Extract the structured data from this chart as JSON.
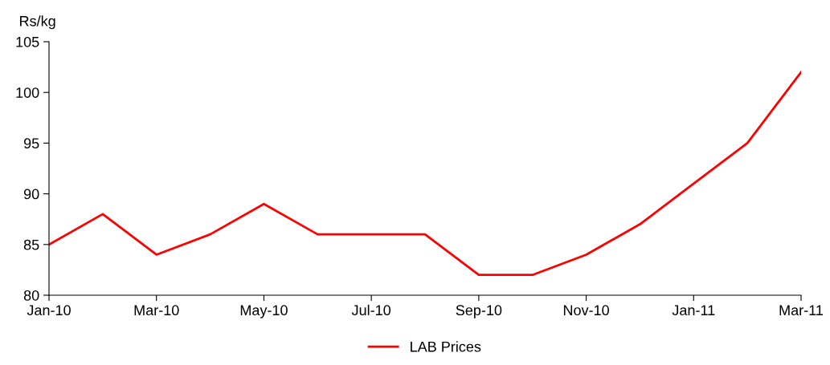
{
  "chart_data": {
    "type": "line",
    "ylabel": "Rs/kg",
    "categories": [
      "Jan-10",
      null,
      "Mar-10",
      null,
      "May-10",
      null,
      "Jul-10",
      null,
      "Sep-10",
      null,
      "Nov-10",
      null,
      "Jan-11",
      null,
      "Mar-11"
    ],
    "series": [
      {
        "name": "LAB Prices",
        "color": "#ff0000",
        "values": [
          85,
          88,
          84,
          86,
          89,
          86,
          86,
          86,
          82,
          82,
          84,
          87,
          91,
          95,
          102
        ]
      }
    ],
    "ylim": [
      80,
      105
    ],
    "yticks": [
      80,
      85,
      90,
      95,
      100,
      105
    ],
    "grid": false,
    "legend": "bottom",
    "marker": "none",
    "line_style": "solid"
  }
}
